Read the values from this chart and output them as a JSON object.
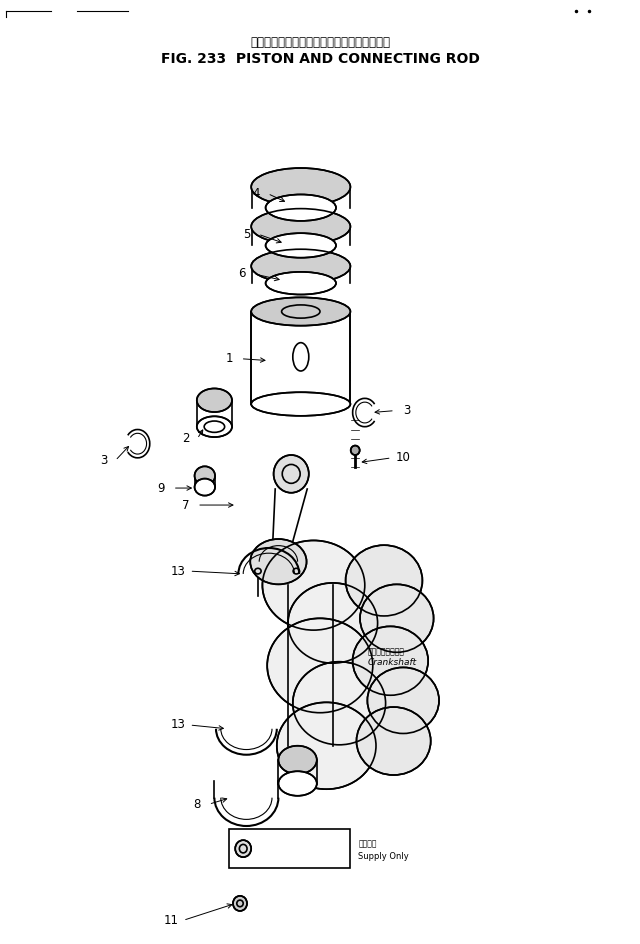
{
  "title_japanese": "ピストン　および　コネクティング　ロッド",
  "title_english": "FIG. 233  PISTON AND CONNECTING ROD",
  "bg_color": "#ffffff",
  "line_color": "#000000",
  "crankshaft_label_jp": "クランクシャフト",
  "crankshaft_label_en": "Crankshaft",
  "supply_only_jp": "補給専用",
  "supply_only_en": "Supply Only"
}
